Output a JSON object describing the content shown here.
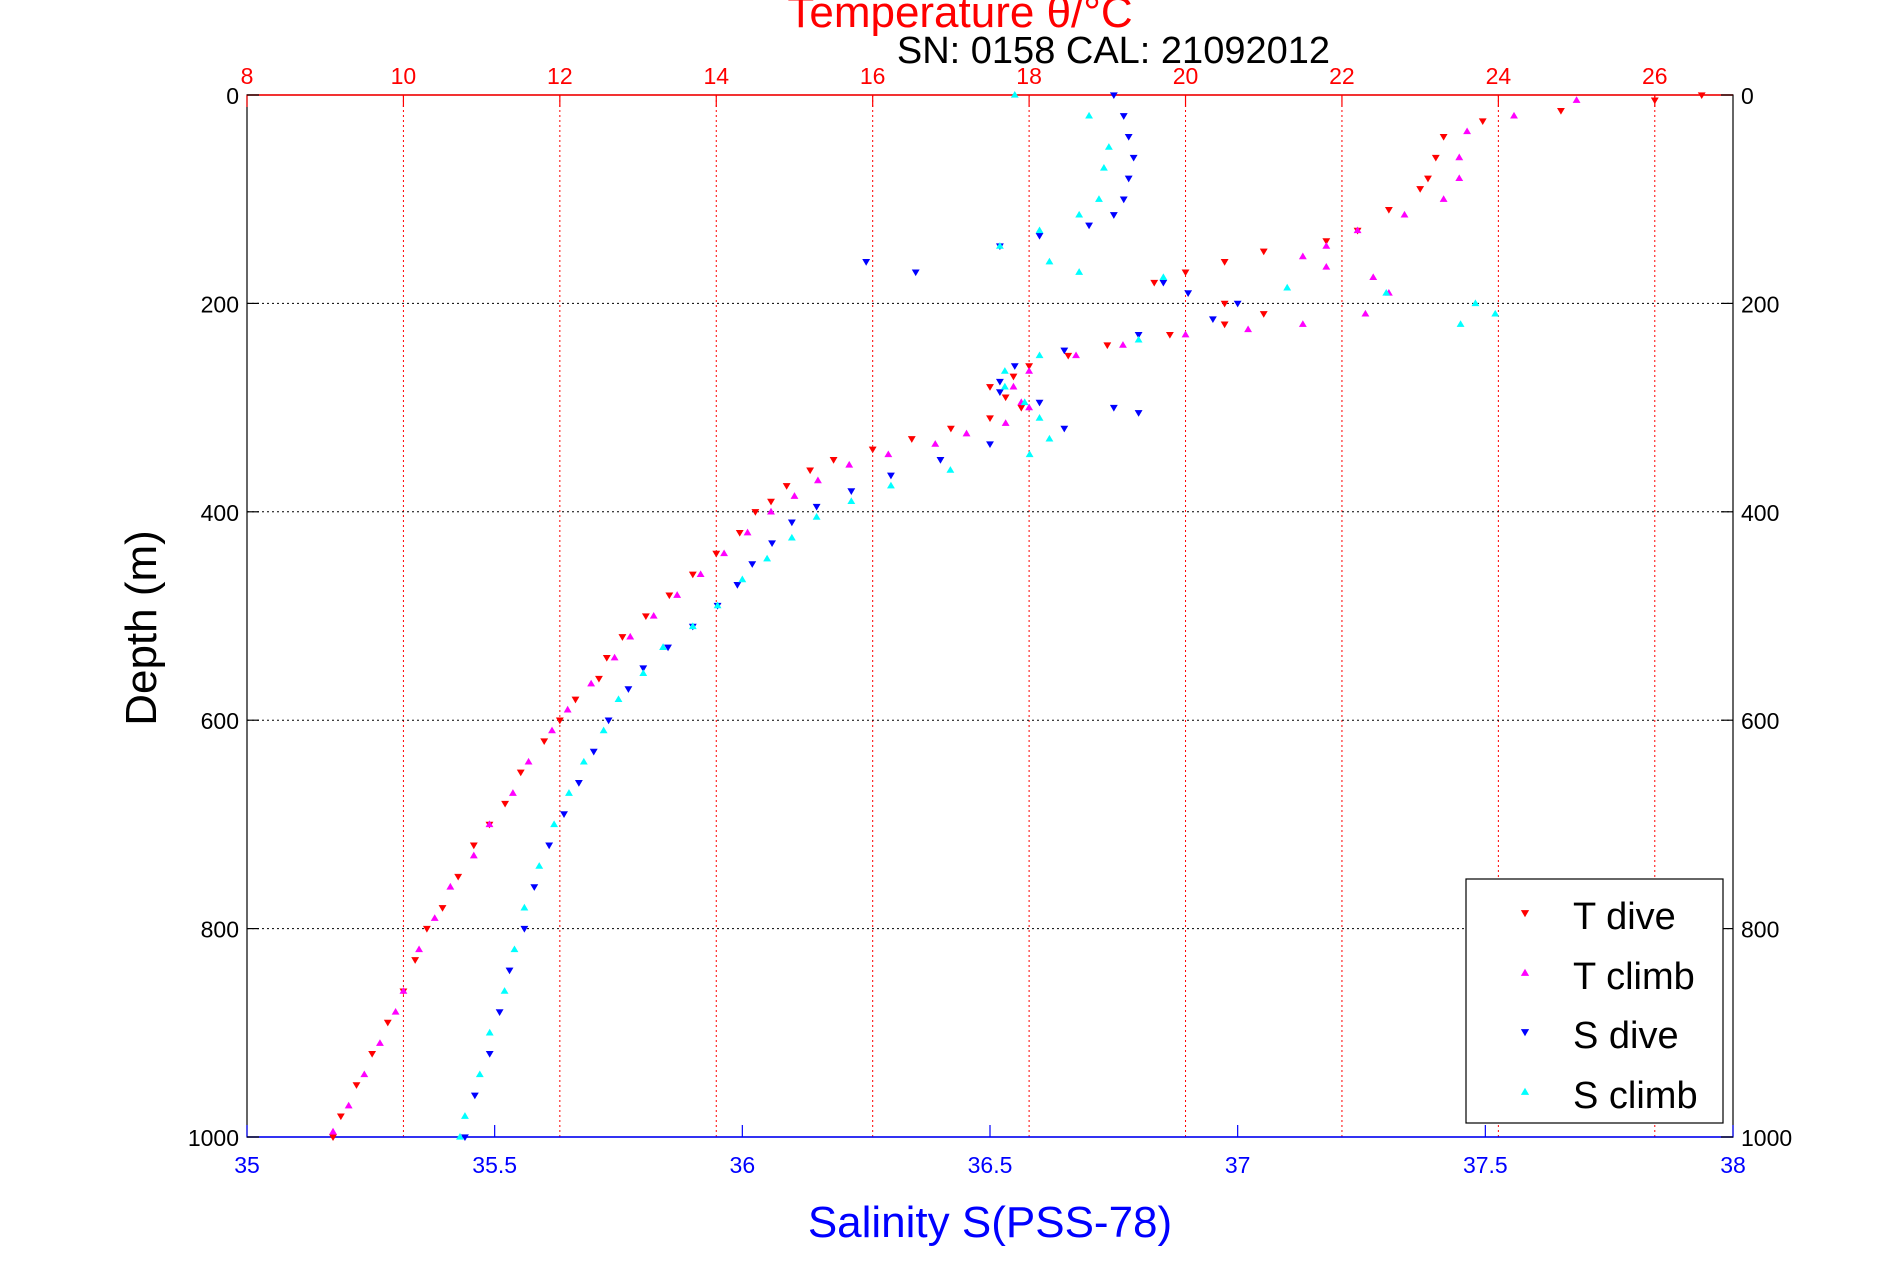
{
  "chart_data": {
    "type": "scatter",
    "title": "Temperature θ/°C",
    "subtitle": "SN: 0158  CAL: 21092012",
    "xlabel": "Salinity S(PSS-78)",
    "ylabel": "Depth (m)",
    "x_top": {
      "label": "Temperature θ/°C",
      "range": [
        8,
        27
      ],
      "ticks": [
        8,
        10,
        12,
        14,
        16,
        18,
        20,
        22,
        24,
        26
      ],
      "color": "#ff0000"
    },
    "x_bottom": {
      "label": "Salinity S(PSS-78)",
      "range": [
        35,
        38
      ],
      "ticks": [
        35,
        35.5,
        36,
        36.5,
        37,
        37.5,
        38
      ],
      "color": "#0000ff"
    },
    "y": {
      "label": "Depth (m)",
      "range": [
        0,
        1000
      ],
      "reversed": true,
      "ticks": [
        0,
        200,
        400,
        600,
        800,
        1000
      ]
    },
    "grid": {
      "temperature_vertical": true,
      "salinity_vertical": false,
      "horizontal": true
    },
    "legend": {
      "position": "bottom-right",
      "entries": [
        "T dive",
        "T climb",
        "S dive",
        "S climb"
      ]
    },
    "series": [
      {
        "name": "T dive",
        "axis": "temperature",
        "marker": "triangle-down",
        "color": "#ff0000",
        "points": [
          [
            26.6,
            0
          ],
          [
            26.0,
            5
          ],
          [
            24.8,
            15
          ],
          [
            23.8,
            25
          ],
          [
            23.3,
            40
          ],
          [
            23.2,
            60
          ],
          [
            23.1,
            80
          ],
          [
            23.0,
            90
          ],
          [
            22.6,
            110
          ],
          [
            22.2,
            130
          ],
          [
            21.8,
            140
          ],
          [
            21.0,
            150
          ],
          [
            20.5,
            160
          ],
          [
            20.0,
            170
          ],
          [
            19.6,
            180
          ],
          [
            20.5,
            200
          ],
          [
            21.0,
            210
          ],
          [
            20.5,
            220
          ],
          [
            19.8,
            230
          ],
          [
            19.0,
            240
          ],
          [
            18.5,
            250
          ],
          [
            18.0,
            260
          ],
          [
            17.8,
            270
          ],
          [
            17.5,
            280
          ],
          [
            17.7,
            290
          ],
          [
            17.9,
            300
          ],
          [
            17.5,
            310
          ],
          [
            17.0,
            320
          ],
          [
            16.5,
            330
          ],
          [
            16.0,
            340
          ],
          [
            15.5,
            350
          ],
          [
            15.2,
            360
          ],
          [
            14.9,
            375
          ],
          [
            14.7,
            390
          ],
          [
            14.5,
            400
          ],
          [
            14.3,
            420
          ],
          [
            14.0,
            440
          ],
          [
            13.7,
            460
          ],
          [
            13.4,
            480
          ],
          [
            13.1,
            500
          ],
          [
            12.8,
            520
          ],
          [
            12.6,
            540
          ],
          [
            12.5,
            560
          ],
          [
            12.2,
            580
          ],
          [
            12.0,
            600
          ],
          [
            11.8,
            620
          ],
          [
            11.5,
            650
          ],
          [
            11.3,
            680
          ],
          [
            11.1,
            700
          ],
          [
            10.9,
            720
          ],
          [
            10.7,
            750
          ],
          [
            10.5,
            780
          ],
          [
            10.3,
            800
          ],
          [
            10.15,
            830
          ],
          [
            10.0,
            860
          ],
          [
            9.8,
            890
          ],
          [
            9.6,
            920
          ],
          [
            9.4,
            950
          ],
          [
            9.2,
            980
          ],
          [
            9.1,
            1000
          ]
        ]
      },
      {
        "name": "T climb",
        "axis": "temperature",
        "marker": "triangle-up",
        "color": "#ff00ff",
        "points": [
          [
            25.0,
            5
          ],
          [
            24.2,
            20
          ],
          [
            23.6,
            35
          ],
          [
            23.5,
            60
          ],
          [
            23.5,
            80
          ],
          [
            23.3,
            100
          ],
          [
            22.8,
            115
          ],
          [
            22.2,
            130
          ],
          [
            21.8,
            145
          ],
          [
            21.5,
            155
          ],
          [
            21.8,
            165
          ],
          [
            22.4,
            175
          ],
          [
            22.6,
            190
          ],
          [
            22.3,
            210
          ],
          [
            21.5,
            220
          ],
          [
            20.8,
            225
          ],
          [
            20.0,
            230
          ],
          [
            19.2,
            240
          ],
          [
            18.6,
            250
          ],
          [
            18.0,
            265
          ],
          [
            17.8,
            280
          ],
          [
            17.9,
            295
          ],
          [
            18.0,
            300
          ],
          [
            17.7,
            315
          ],
          [
            17.2,
            325
          ],
          [
            16.8,
            335
          ],
          [
            16.2,
            345
          ],
          [
            15.7,
            355
          ],
          [
            15.3,
            370
          ],
          [
            15.0,
            385
          ],
          [
            14.7,
            400
          ],
          [
            14.4,
            420
          ],
          [
            14.1,
            440
          ],
          [
            13.8,
            460
          ],
          [
            13.5,
            480
          ],
          [
            13.2,
            500
          ],
          [
            12.9,
            520
          ],
          [
            12.7,
            540
          ],
          [
            12.4,
            565
          ],
          [
            12.1,
            590
          ],
          [
            11.9,
            610
          ],
          [
            11.6,
            640
          ],
          [
            11.4,
            670
          ],
          [
            11.1,
            700
          ],
          [
            10.9,
            730
          ],
          [
            10.6,
            760
          ],
          [
            10.4,
            790
          ],
          [
            10.2,
            820
          ],
          [
            10.0,
            860
          ],
          [
            9.9,
            880
          ],
          [
            9.7,
            910
          ],
          [
            9.5,
            940
          ],
          [
            9.3,
            970
          ],
          [
            9.1,
            995
          ]
        ]
      },
      {
        "name": "S dive",
        "axis": "salinity",
        "marker": "triangle-down",
        "color": "#0000ff",
        "points": [
          [
            36.75,
            0
          ],
          [
            36.77,
            20
          ],
          [
            36.78,
            40
          ],
          [
            36.79,
            60
          ],
          [
            36.78,
            80
          ],
          [
            36.77,
            100
          ],
          [
            36.75,
            115
          ],
          [
            36.7,
            125
          ],
          [
            36.6,
            135
          ],
          [
            36.52,
            145
          ],
          [
            36.25,
            160
          ],
          [
            36.35,
            170
          ],
          [
            36.85,
            180
          ],
          [
            36.9,
            190
          ],
          [
            37.0,
            200
          ],
          [
            36.95,
            215
          ],
          [
            36.8,
            230
          ],
          [
            36.65,
            245
          ],
          [
            36.55,
            260
          ],
          [
            36.52,
            275
          ],
          [
            36.52,
            285
          ],
          [
            36.6,
            295
          ],
          [
            36.75,
            300
          ],
          [
            36.8,
            305
          ],
          [
            36.65,
            320
          ],
          [
            36.5,
            335
          ],
          [
            36.4,
            350
          ],
          [
            36.3,
            365
          ],
          [
            36.22,
            380
          ],
          [
            36.15,
            395
          ],
          [
            36.1,
            410
          ],
          [
            36.06,
            430
          ],
          [
            36.02,
            450
          ],
          [
            35.99,
            470
          ],
          [
            35.95,
            490
          ],
          [
            35.9,
            510
          ],
          [
            35.85,
            530
          ],
          [
            35.8,
            550
          ],
          [
            35.77,
            570
          ],
          [
            35.73,
            600
          ],
          [
            35.7,
            630
          ],
          [
            35.67,
            660
          ],
          [
            35.64,
            690
          ],
          [
            35.61,
            720
          ],
          [
            35.58,
            760
          ],
          [
            35.56,
            800
          ],
          [
            35.53,
            840
          ],
          [
            35.51,
            880
          ],
          [
            35.49,
            920
          ],
          [
            35.46,
            960
          ],
          [
            35.44,
            1000
          ]
        ]
      },
      {
        "name": "S climb",
        "axis": "salinity",
        "marker": "triangle-up",
        "color": "#00ffff",
        "points": [
          [
            36.55,
            0
          ],
          [
            36.7,
            20
          ],
          [
            36.74,
            50
          ],
          [
            36.73,
            70
          ],
          [
            36.72,
            100
          ],
          [
            36.68,
            115
          ],
          [
            36.6,
            130
          ],
          [
            36.52,
            145
          ],
          [
            36.62,
            160
          ],
          [
            36.68,
            170
          ],
          [
            36.85,
            175
          ],
          [
            37.1,
            185
          ],
          [
            37.3,
            190
          ],
          [
            37.48,
            200
          ],
          [
            37.52,
            210
          ],
          [
            37.45,
            220
          ],
          [
            36.8,
            235
          ],
          [
            36.6,
            250
          ],
          [
            36.53,
            265
          ],
          [
            36.53,
            280
          ],
          [
            36.57,
            295
          ],
          [
            36.6,
            310
          ],
          [
            36.62,
            330
          ],
          [
            36.58,
            345
          ],
          [
            36.42,
            360
          ],
          [
            36.3,
            375
          ],
          [
            36.22,
            390
          ],
          [
            36.15,
            405
          ],
          [
            36.1,
            425
          ],
          [
            36.05,
            445
          ],
          [
            36.0,
            465
          ],
          [
            35.95,
            490
          ],
          [
            35.9,
            510
          ],
          [
            35.84,
            530
          ],
          [
            35.8,
            555
          ],
          [
            35.75,
            580
          ],
          [
            35.72,
            610
          ],
          [
            35.68,
            640
          ],
          [
            35.65,
            670
          ],
          [
            35.62,
            700
          ],
          [
            35.59,
            740
          ],
          [
            35.56,
            780
          ],
          [
            35.54,
            820
          ],
          [
            35.52,
            860
          ],
          [
            35.49,
            900
          ],
          [
            35.47,
            940
          ],
          [
            35.44,
            980
          ],
          [
            35.43,
            1000
          ]
        ]
      }
    ]
  }
}
